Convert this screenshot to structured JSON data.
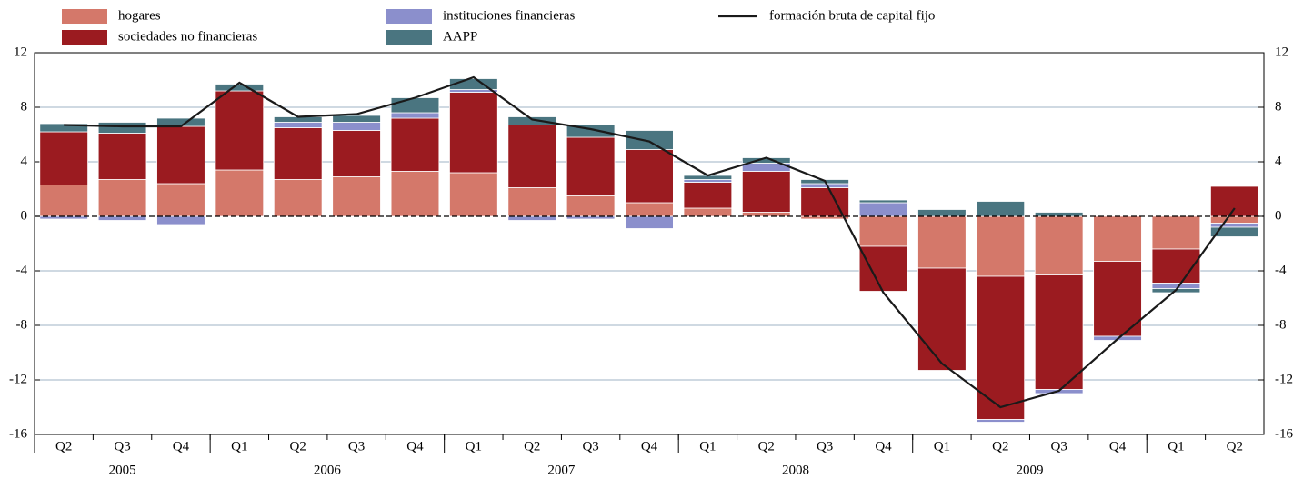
{
  "chart_data": {
    "type": "stacked-bar-line",
    "categories": [
      "Q2",
      "Q3",
      "Q4",
      "Q1",
      "Q2",
      "Q3",
      "Q4",
      "Q1",
      "Q2",
      "Q3",
      "Q4",
      "Q1",
      "Q2",
      "Q3",
      "Q4",
      "Q1",
      "Q2",
      "Q3",
      "Q4",
      "Q1",
      "Q2"
    ],
    "year_groups": [
      {
        "label": "2005",
        "size": 3
      },
      {
        "label": "2006",
        "size": 4
      },
      {
        "label": "2007",
        "size": 4
      },
      {
        "label": "2008",
        "size": 4
      },
      {
        "label": "2009",
        "size": 4
      },
      {
        "label": null,
        "size": 2
      }
    ],
    "series": [
      {
        "name": "hogares",
        "color": "#d4786a",
        "kind": "bar",
        "values": [
          2.3,
          2.7,
          2.4,
          3.4,
          2.7,
          2.9,
          3.3,
          3.2,
          2.1,
          1.5,
          1.0,
          0.6,
          0.3,
          -0.2,
          -2.2,
          -3.8,
          -4.4,
          -4.3,
          -3.3,
          -2.4,
          -0.5
        ]
      },
      {
        "name": "sociedades no financieras",
        "color": "#9b1b20",
        "kind": "bar",
        "values": [
          3.9,
          3.4,
          4.2,
          5.8,
          3.8,
          3.4,
          3.9,
          5.9,
          4.6,
          4.3,
          3.9,
          1.9,
          3.0,
          2.1,
          -3.3,
          -7.5,
          -10.5,
          -8.4,
          -5.5,
          -2.5,
          2.2
        ]
      },
      {
        "name": "instituciones financieras",
        "color": "#8b8fcc",
        "kind": "bar",
        "values": [
          -0.2,
          -0.3,
          -0.6,
          0,
          0.4,
          0.6,
          0.4,
          0.2,
          -0.3,
          -0.2,
          -0.9,
          0.2,
          0.6,
          0.3,
          1.0,
          0,
          -0.2,
          -0.3,
          -0.3,
          -0.4,
          -0.3
        ]
      },
      {
        "name": "AAPP",
        "color": "#4a7580",
        "kind": "bar",
        "values": [
          0.6,
          0.8,
          0.6,
          0.5,
          0.4,
          0.5,
          1.1,
          0.8,
          0.6,
          0.9,
          1.4,
          0.3,
          0.4,
          0.3,
          0.2,
          0.5,
          1.1,
          0.3,
          0,
          -0.3,
          -0.7
        ]
      },
      {
        "name": "formación bruta de capital fijo",
        "color": "#1a1a1a",
        "kind": "line",
        "values": [
          6.7,
          6.6,
          6.6,
          9.8,
          7.3,
          7.5,
          8.7,
          10.2,
          7.1,
          6.4,
          5.5,
          3.0,
          4.3,
          2.6,
          -5.6,
          -10.8,
          -14.0,
          -12.8,
          -9.0,
          -5.4,
          0.6
        ]
      }
    ],
    "ylim": [
      -16,
      12
    ],
    "yticks": [
      -16,
      -12,
      -8,
      -4,
      0,
      4,
      8,
      12
    ],
    "y2lim": [
      -16,
      12
    ],
    "y2ticks": [
      -16,
      -12,
      -8,
      -4,
      0,
      4,
      8,
      12
    ],
    "grid": true
  }
}
